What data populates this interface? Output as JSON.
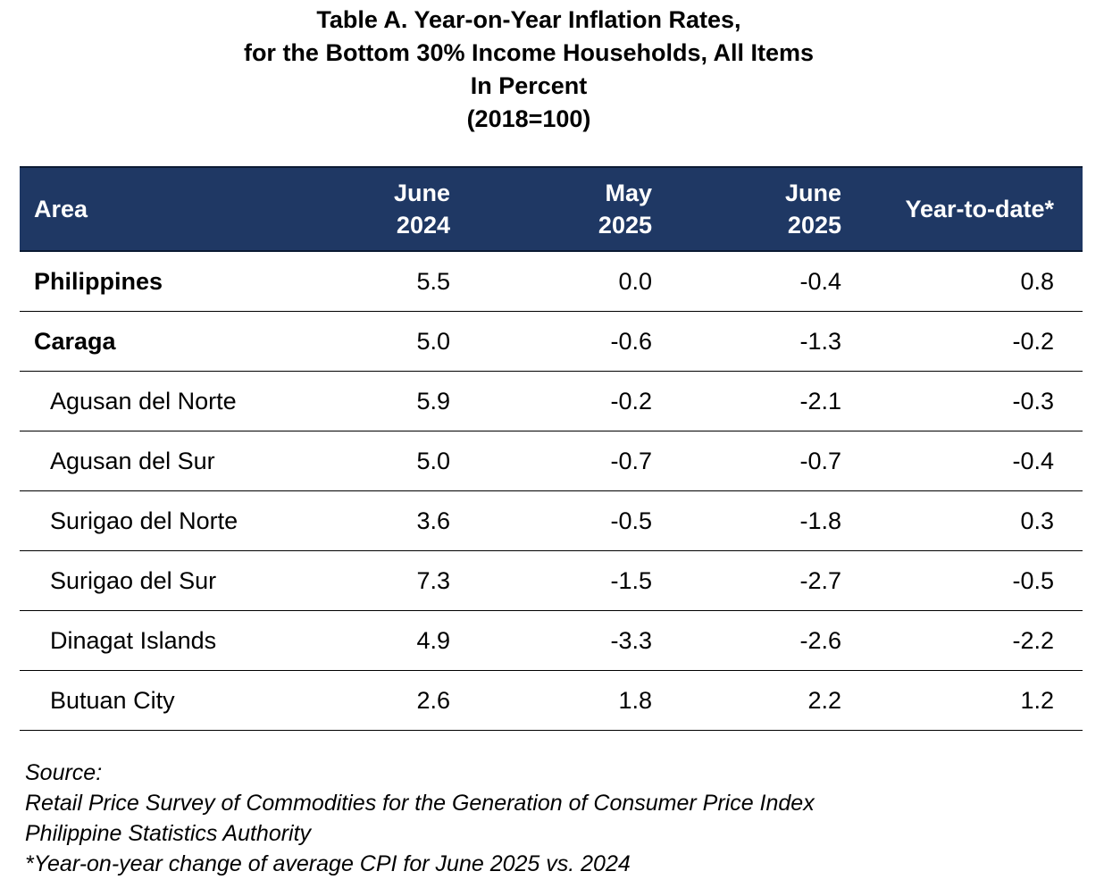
{
  "title": {
    "line1": "Table A. Year-on-Year Inflation Rates,",
    "line2": "for the Bottom 30% Income Households, All Items",
    "line3": "In Percent",
    "line4": "(2018=100)"
  },
  "table": {
    "header_bg": "#1f3864",
    "columns": [
      {
        "line1": "Area",
        "line2": ""
      },
      {
        "line1": "June",
        "line2": "2024"
      },
      {
        "line1": "May",
        "line2": "2025"
      },
      {
        "line1": "June",
        "line2": "2025"
      },
      {
        "line1": "Year-to-date*",
        "line2": ""
      }
    ],
    "rows": [
      {
        "area": "Philippines",
        "june2024": "5.5",
        "may2025": "0.0",
        "june2025": "-0.4",
        "ytd": "0.8"
      },
      {
        "area": "Caraga",
        "june2024": "5.0",
        "may2025": "-0.6",
        "june2025": "-1.3",
        "ytd": "-0.2"
      },
      {
        "area": "Agusan del Norte",
        "june2024": "5.9",
        "may2025": "-0.2",
        "june2025": "-2.1",
        "ytd": "-0.3"
      },
      {
        "area": "Agusan del Sur",
        "june2024": "5.0",
        "may2025": "-0.7",
        "june2025": "-0.7",
        "ytd": "-0.4"
      },
      {
        "area": "Surigao del Norte",
        "june2024": "3.6",
        "may2025": "-0.5",
        "june2025": "-1.8",
        "ytd": "0.3"
      },
      {
        "area": "Surigao del Sur",
        "june2024": "7.3",
        "may2025": "-1.5",
        "june2025": "-2.7",
        "ytd": "-0.5"
      },
      {
        "area": "Dinagat Islands",
        "june2024": "4.9",
        "may2025": "-3.3",
        "june2025": "-2.6",
        "ytd": "-2.2"
      },
      {
        "area": "Butuan City",
        "june2024": "2.6",
        "may2025": "1.8",
        "june2025": "2.2",
        "ytd": "1.2"
      }
    ]
  },
  "footnotes": {
    "source_label": "Source:",
    "source_line1": "Retail Price Survey of Commodities for the Generation of Consumer Price Index",
    "source_line2": "Philippine Statistics Authority",
    "note": "*Year-on-year change of average CPI for June 2025 vs. 2024"
  }
}
